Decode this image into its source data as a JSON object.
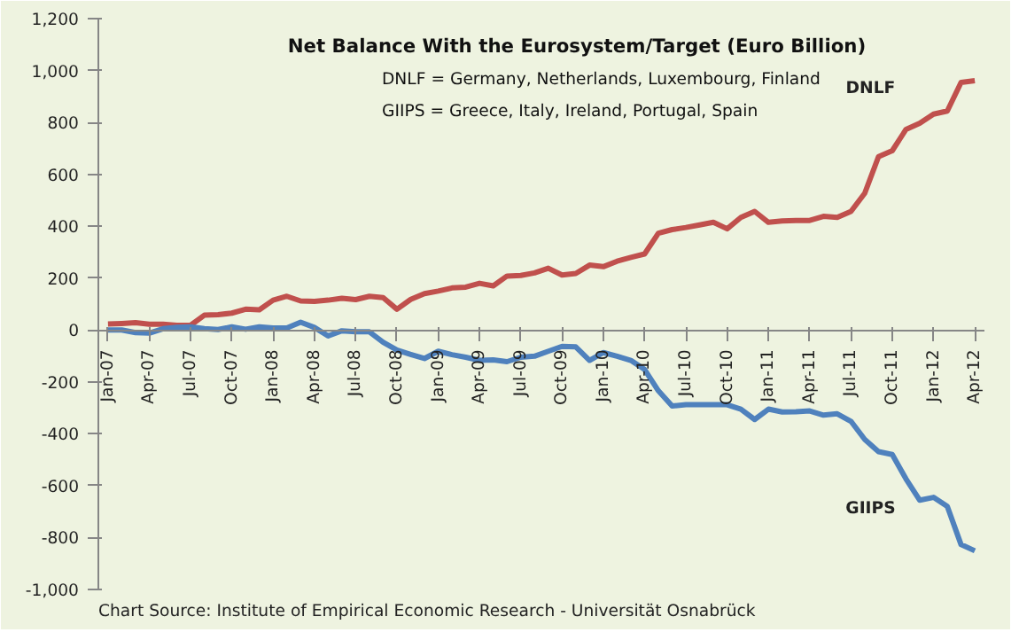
{
  "chart_data": {
    "type": "line",
    "title": "Net Balance With the Eurosystem/Target (Euro Billion)",
    "annotations": [
      "DNLF = Germany, Netherlands, Luxembourg, Finland",
      "GIIPS = Greece, Italy, Ireland, Portugal, Spain",
      "Chart Source: Institute of Empirical Economic Research - Universität Osnabrück"
    ],
    "categories": [
      "Jan-07",
      null,
      null,
      "Apr-07",
      null,
      null,
      "Jul-07",
      null,
      null,
      "Oct-07",
      null,
      null,
      "Jan-08",
      null,
      null,
      "Apr-08",
      null,
      null,
      "Jul-08",
      null,
      null,
      "Oct-08",
      null,
      null,
      "Jan-09",
      null,
      null,
      "Apr-09",
      null,
      null,
      "Jul-09",
      null,
      null,
      "Oct-09",
      null,
      null,
      "Jan-10",
      null,
      null,
      "Apr-10",
      null,
      null,
      "Jul-10",
      null,
      null,
      "Oct-10",
      null,
      null,
      "Jan-11",
      null,
      null,
      "Apr-11",
      null,
      null,
      "Jul-11",
      null,
      null,
      "Oct-11",
      null,
      null,
      "Jan-12",
      null,
      null,
      "Apr-12"
    ],
    "series": [
      {
        "name": "DNLF",
        "color": "#c0504d",
        "values": [
          23,
          25,
          28,
          22,
          22,
          18,
          18,
          57,
          59,
          65,
          80,
          78,
          115,
          130,
          112,
          110,
          115,
          122,
          117,
          130,
          125,
          80,
          118,
          140,
          150,
          162,
          165,
          180,
          170,
          208,
          210,
          220,
          238,
          212,
          218,
          250,
          244,
          265,
          280,
          293,
          373,
          387,
          395,
          405,
          415,
          390,
          434,
          457,
          415,
          420,
          422,
          422,
          438,
          434,
          457,
          527,
          668,
          691,
          773,
          797,
          832,
          844,
          954,
          961
        ]
      },
      {
        "name": "GIIPS",
        "color": "#4f81bd",
        "values": [
          0,
          0,
          -10,
          -12,
          5,
          10,
          12,
          5,
          2,
          12,
          3,
          12,
          8,
          8,
          30,
          10,
          -23,
          -3,
          -7,
          -7,
          -47,
          -77,
          -94,
          -110,
          -82,
          -95,
          -105,
          -117,
          -115,
          -122,
          -105,
          -101,
          -82,
          -63,
          -65,
          -117,
          -87,
          -101,
          -117,
          -152,
          -234,
          -293,
          -288,
          -288,
          -288,
          -288,
          -305,
          -345,
          -305,
          -316,
          -315,
          -312,
          -328,
          -323,
          -352,
          -422,
          -469,
          -480,
          -574,
          -656,
          -645,
          -680,
          -827,
          -851
        ]
      }
    ],
    "ylim": [
      -1000,
      1200
    ],
    "yticks": [
      {
        "value": -1000,
        "label": "-1,000"
      },
      -800,
      -600,
      -400,
      -200,
      0,
      200,
      400,
      600,
      800,
      {
        "value": 1000,
        "label": "1,000"
      },
      {
        "value": 1200,
        "label": "1,200"
      }
    ],
    "grid": false,
    "legend": false,
    "marker": "none",
    "line_style": "solid"
  }
}
